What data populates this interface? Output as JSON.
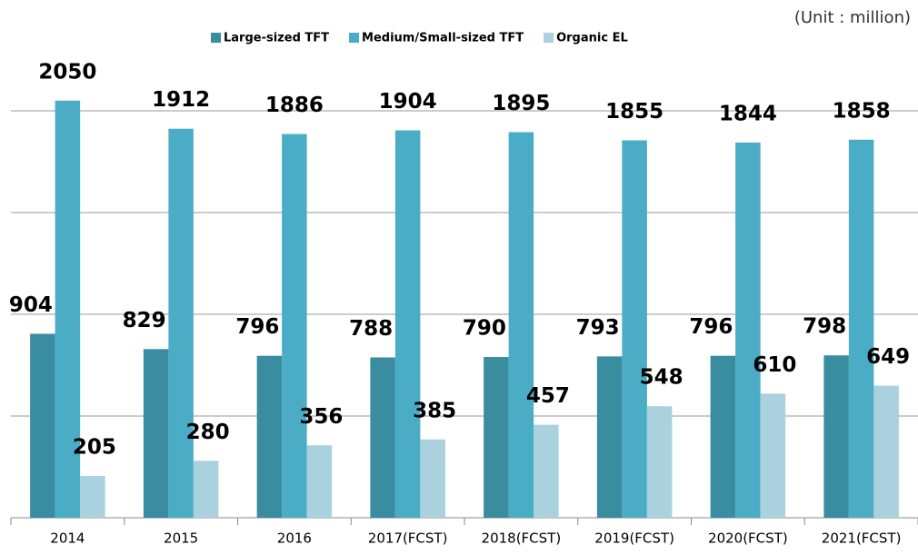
{
  "chart_data": {
    "type": "bar",
    "subtitle": "(Unit : million)",
    "categories": [
      "2014",
      "2015",
      "2016",
      "2017(FCST)",
      "2018(FCST)",
      "2019(FCST)",
      "2020(FCST)",
      "2021(FCST)"
    ],
    "series": [
      {
        "name": "Large-sized TFT",
        "color": "#3a8ca0",
        "values": [
          904,
          829,
          796,
          788,
          790,
          793,
          796,
          798
        ]
      },
      {
        "name": "Medium/Small-sized TFT",
        "color": "#4bacc6",
        "values": [
          2050,
          1912,
          1886,
          1904,
          1895,
          1855,
          1844,
          1858
        ]
      },
      {
        "name": "Organic EL",
        "color": "#a9d1de",
        "values": [
          205,
          280,
          356,
          385,
          457,
          548,
          610,
          649
        ]
      }
    ],
    "ylim": [
      0,
      2500
    ],
    "yticks": [
      0,
      500,
      1000,
      1500,
      2000
    ],
    "grid": true
  }
}
